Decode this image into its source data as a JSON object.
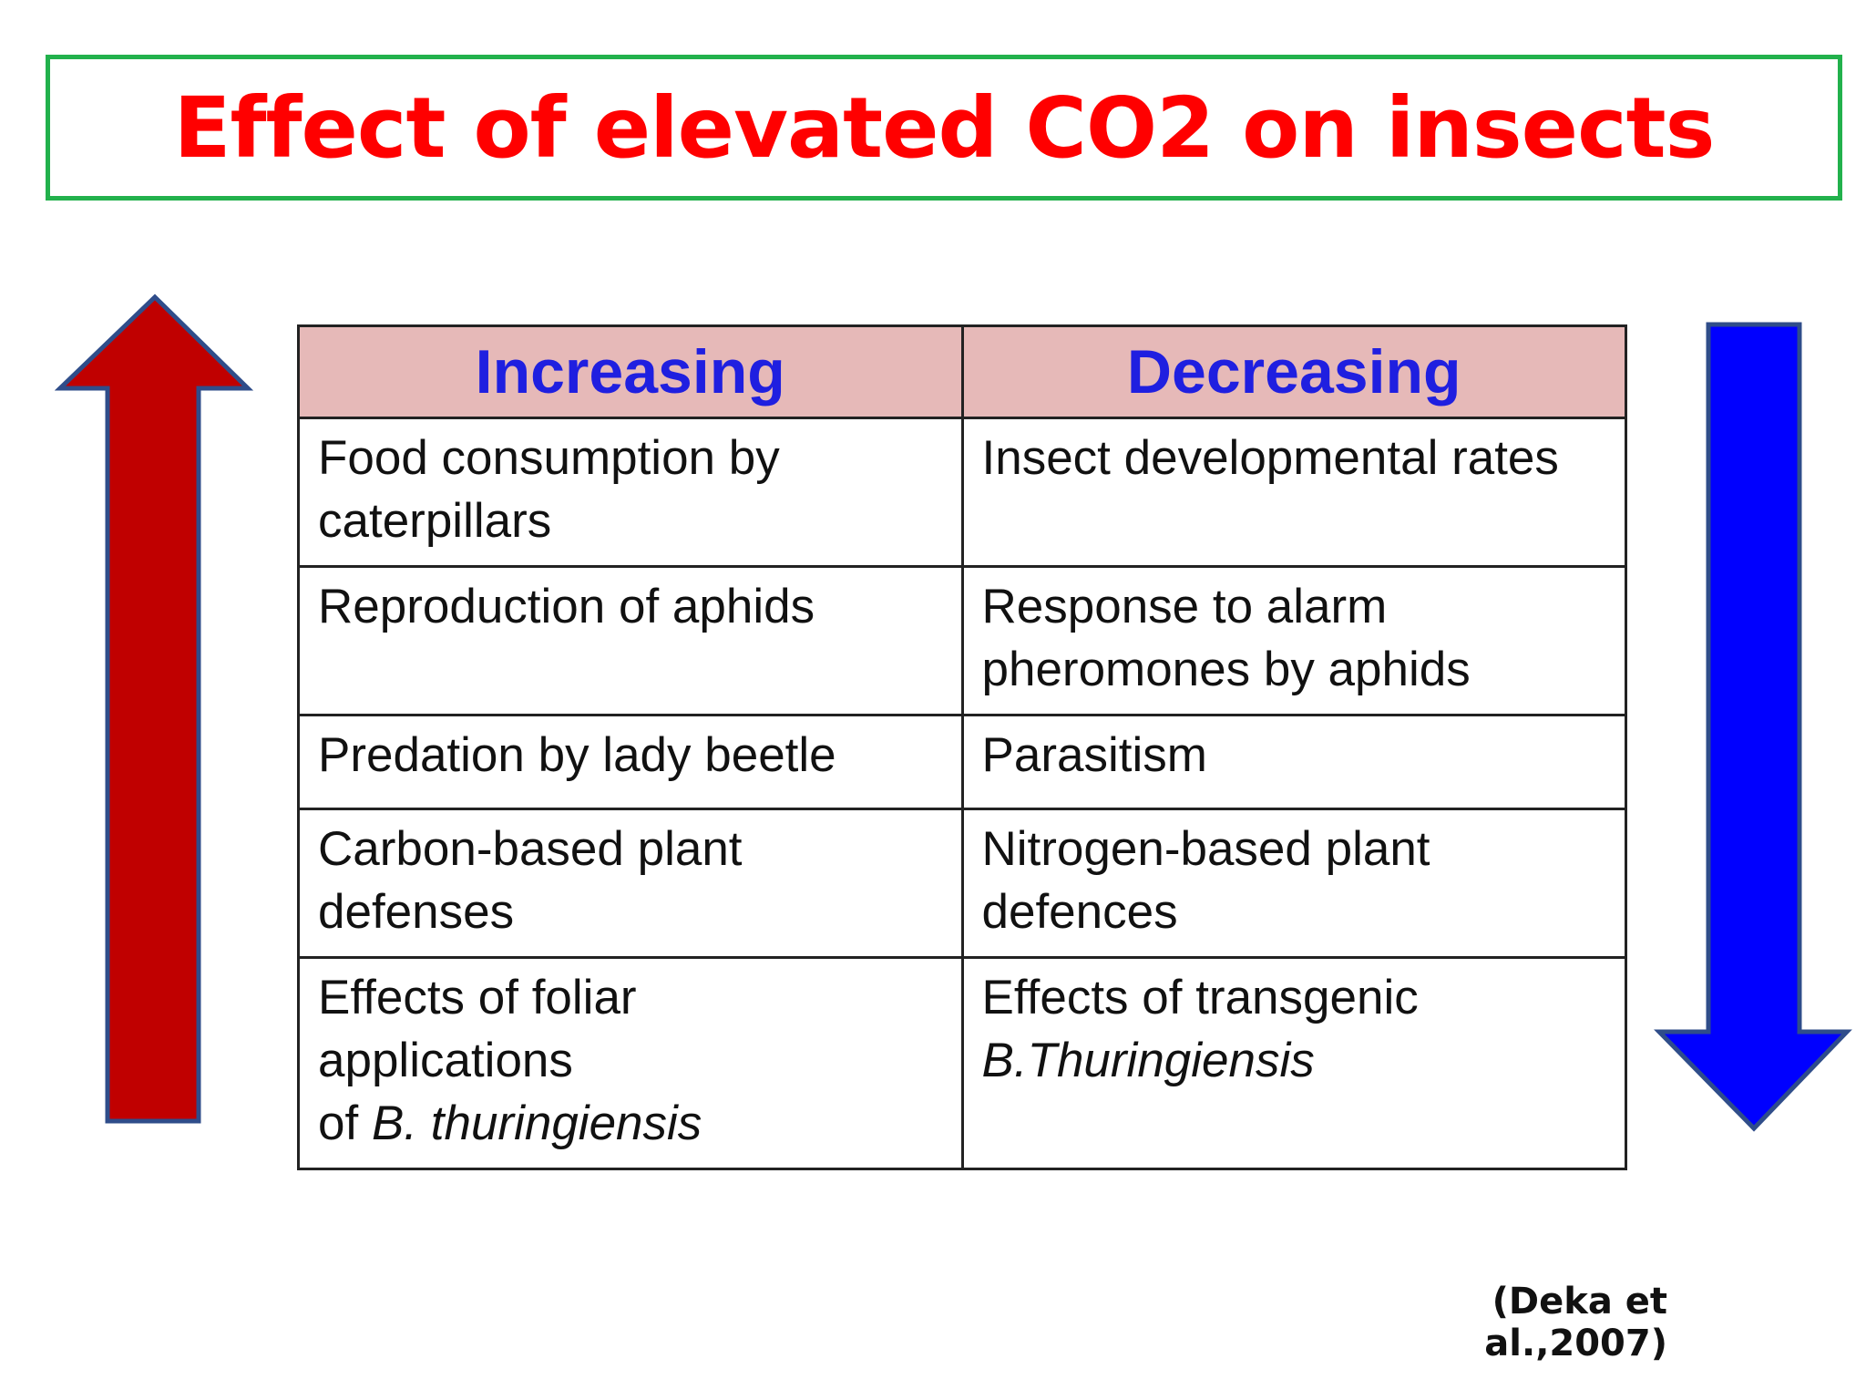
{
  "slide": {
    "title": "Effect of elevated CO2 on insects",
    "citation": "(Deka et al.,2007)"
  },
  "table": {
    "headers": {
      "increasing": "Increasing",
      "decreasing": "Decreasing"
    },
    "rows": [
      {
        "increasing": [
          "Food consumption by",
          "caterpillars"
        ],
        "decreasing": [
          "Insect developmental rates"
        ]
      },
      {
        "increasing": [
          "Reproduction of aphids"
        ],
        "decreasing": [
          "Response to alarm",
          "pheromones by aphids"
        ]
      },
      {
        "increasing": [
          "Predation by lady beetle"
        ],
        "decreasing": [
          "Parasitism"
        ]
      },
      {
        "increasing": [
          "Carbon-based plant",
          "defenses"
        ],
        "decreasing": [
          "Nitrogen-based plant",
          "defences"
        ]
      },
      {
        "increasing": [
          "Effects of foliar",
          "applications",
          "of ",
          "B. thuringiensis"
        ],
        "decreasing": [
          "Effects of transgenic",
          "B.Thuringiensis"
        ]
      }
    ]
  },
  "arrows": {
    "up": {
      "icon": "up-arrow-icon",
      "fill": "#c00000",
      "stroke": "#2f4d8a"
    },
    "down": {
      "icon": "down-arrow-icon",
      "fill": "#0000ff",
      "stroke": "#2f4d8a"
    }
  },
  "colors": {
    "title": "#ff0000",
    "title_border": "#22b14c",
    "header_bg": "#e6b9b8",
    "header_text": "#1f1fe0"
  }
}
